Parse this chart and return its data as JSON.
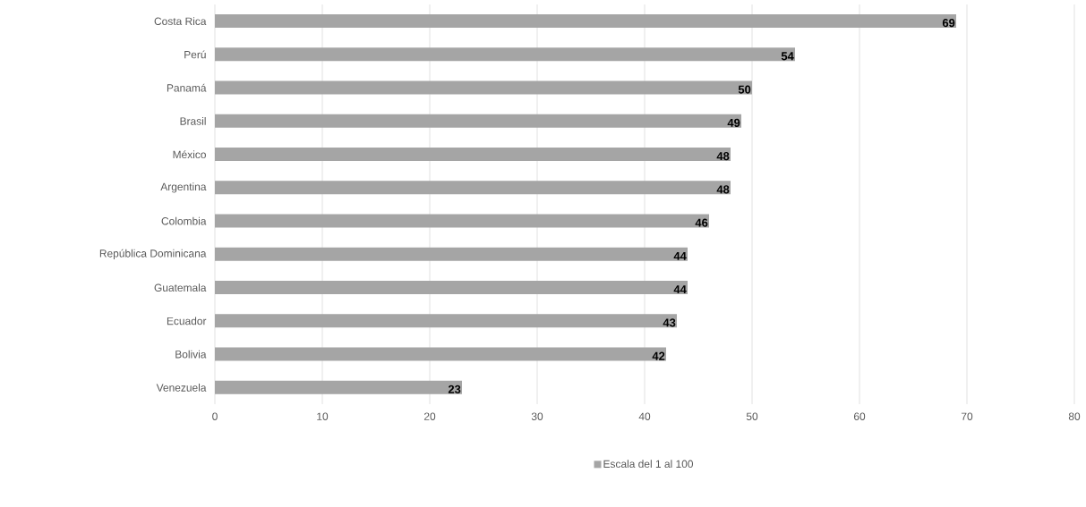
{
  "chart_data": {
    "type": "bar",
    "orientation": "horizontal",
    "categories": [
      "Costa Rica",
      "Perú",
      "Panamá",
      "Brasil",
      "México",
      "Argentina",
      "Colombia",
      "República Dominicana",
      "Guatemala",
      "Ecuador",
      "Bolivia",
      "Venezuela"
    ],
    "series": [
      {
        "name": "Escala del 1 al 100",
        "color": "#a5a5a5",
        "values": [
          69,
          54,
          50,
          49,
          48,
          48,
          46,
          44,
          44,
          43,
          42,
          23
        ]
      }
    ],
    "xlim": [
      0,
      80
    ],
    "xticks": [
      0,
      10,
      20,
      30,
      40,
      50,
      60,
      70,
      80
    ],
    "grid": "x",
    "legend": "bottom",
    "data_labels": true
  }
}
